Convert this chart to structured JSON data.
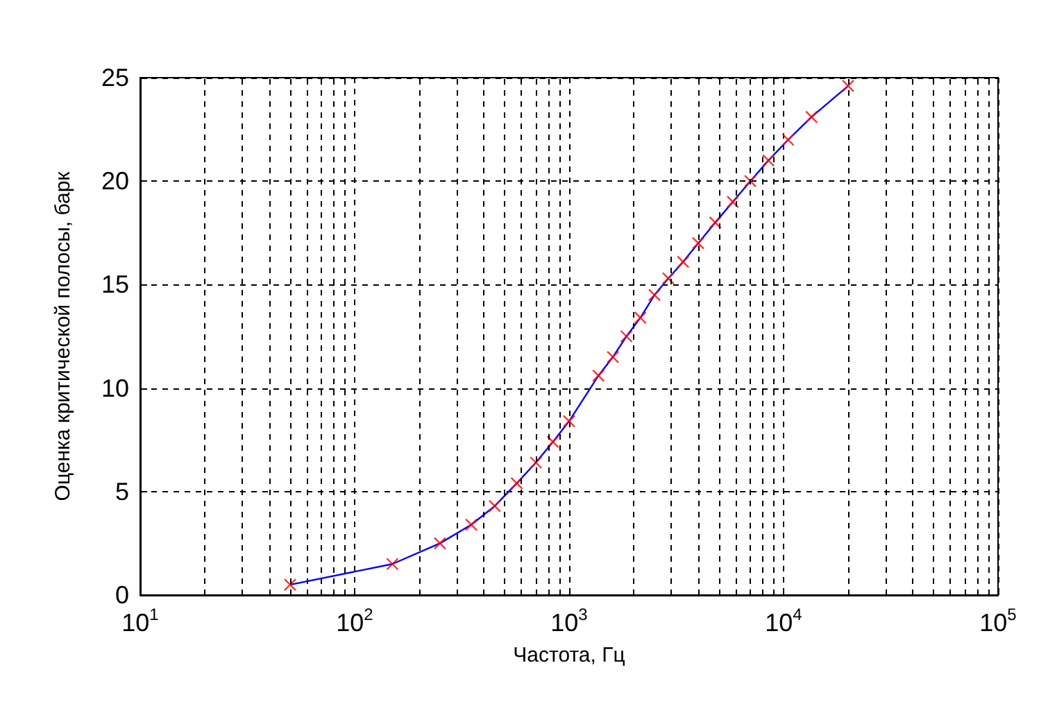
{
  "chart_data": {
    "type": "line",
    "xlabel": "Частота, Гц",
    "ylabel": "Оценка критической полосы, барк",
    "log": "x",
    "grid": true,
    "xlim": [
      10,
      100000
    ],
    "ylim": [
      0,
      25
    ],
    "xticks": [
      {
        "value": 10,
        "label": "10$^{1}$"
      },
      {
        "value": 100,
        "label": "10$^{2}$"
      },
      {
        "value": 1000,
        "label": "10$^{3}$"
      },
      {
        "value": 10000,
        "label": "10$^{4}$"
      },
      {
        "value": 100000,
        "label": "10$^{5}$"
      }
    ],
    "yticks": [
      0,
      5,
      10,
      15,
      20,
      25
    ],
    "x": [
      50,
      150,
      250,
      350,
      450,
      570,
      700,
      840,
      1000,
      1370,
      1600,
      1850,
      2150,
      2500,
      2900,
      3400,
      4000,
      4800,
      5800,
      7000,
      8500,
      10500,
      13500,
      20000
    ],
    "series": [
      {
        "marker": "none",
        "color": "#0000ff",
        "values": [
          0.5,
          1.5,
          2.5,
          3.4,
          4.3,
          5.4,
          6.4,
          7.4,
          8.4,
          10.6,
          11.5,
          12.5,
          13.4,
          14.5,
          15.3,
          16.1,
          17,
          18,
          19,
          20,
          21,
          22,
          23.1,
          24.6
        ]
      },
      {
        "type": "scatter",
        "marker": "cross",
        "color": "#ff0000",
        "values": [
          0.5,
          1.5,
          2.5,
          3.4,
          4.3,
          5.4,
          6.4,
          7.4,
          8.4,
          10.6,
          11.5,
          12.5,
          13.4,
          14.5,
          15.3,
          16.1,
          17,
          18,
          19,
          20,
          21,
          22,
          23.1,
          24.6
        ]
      }
    ]
  }
}
